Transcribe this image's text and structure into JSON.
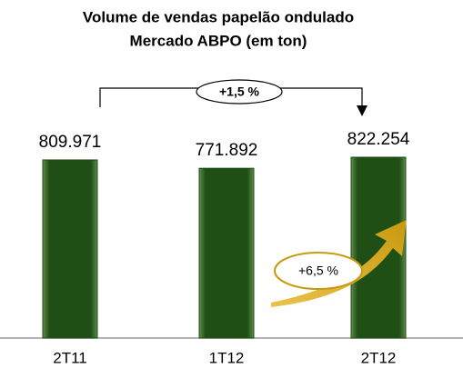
{
  "chart_data": {
    "type": "bar",
    "title": [
      "Volume de vendas papelão ondulado",
      "Mercado ABPO (em ton)"
    ],
    "categories": [
      "2T11",
      "1T12",
      "2T12"
    ],
    "values": [
      809971,
      771892,
      822254
    ],
    "value_labels": [
      "809.971",
      "771.892",
      "822.254"
    ],
    "color": "#1f4f14",
    "annotations": [
      "+1,5 %",
      "+6,5 %"
    ]
  }
}
